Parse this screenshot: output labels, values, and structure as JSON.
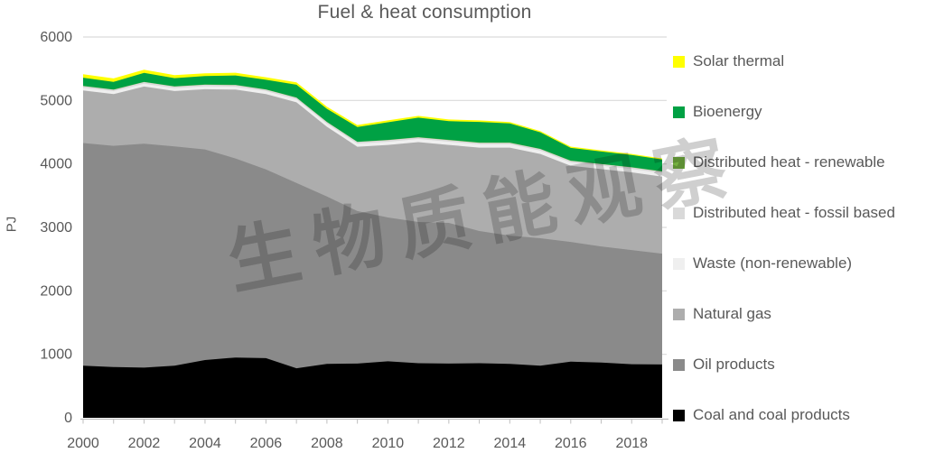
{
  "title": "Fuel & heat consumption",
  "watermark": {
    "text": "生物质能观察"
  },
  "y_axis_unit": "PJ",
  "legend": {
    "items": [
      {
        "label": "Solar thermal",
        "color": "#FFFF00"
      },
      {
        "label": "Bioenergy",
        "color": "#00A144"
      },
      {
        "label": "Distributed heat - renewable",
        "color": "#74B041"
      },
      {
        "label": "Distributed heat - fossil based",
        "color": "#D9D9D9"
      },
      {
        "label": "Waste (non-renewable)",
        "color": "#EFEFEF"
      },
      {
        "label": "Natural gas",
        "color": "#ADADAD"
      },
      {
        "label": "Oil products",
        "color": "#8A8A8A"
      },
      {
        "label": "Coal and coal products",
        "color": "#000000"
      }
    ]
  },
  "chart_data": {
    "type": "area",
    "stacked": true,
    "title": "Fuel & heat consumption",
    "xlabel": "",
    "ylabel": "PJ",
    "ylim": [
      0,
      6000
    ],
    "y_ticks": [
      0,
      1000,
      2000,
      3000,
      4000,
      5000,
      6000
    ],
    "x": [
      2000,
      2001,
      2002,
      2003,
      2004,
      2005,
      2006,
      2007,
      2008,
      2009,
      2010,
      2011,
      2012,
      2013,
      2014,
      2015,
      2016,
      2017,
      2018,
      2019
    ],
    "x_tick_labels": [
      "2000",
      "2002",
      "2004",
      "2006",
      "2008",
      "2010",
      "2012",
      "2014",
      "2016",
      "2018"
    ],
    "grid": "horizontal",
    "legend_position": "right",
    "series_bottom_to_top": [
      {
        "key": "coal",
        "name": "Coal and coal products",
        "color": "#000000",
        "values": [
          820,
          800,
          790,
          820,
          910,
          950,
          940,
          780,
          850,
          855,
          890,
          860,
          855,
          860,
          850,
          820,
          885,
          870,
          845,
          840
        ]
      },
      {
        "key": "oil",
        "name": "Oil products",
        "color": "#8A8A8A",
        "values": [
          3509,
          3486,
          3530,
          3457,
          3319,
          3136,
          2974,
          2920,
          2636,
          2402,
          2267,
          2226,
          2216,
          2083,
          2021,
          2009,
          1886,
          1830,
          1798,
          1746
        ]
      },
      {
        "key": "gas",
        "name": "Natural gas",
        "color": "#ADADAD",
        "values": [
          828,
          814,
          900,
          872,
          948,
          1085,
          1186,
          1271,
          1100,
          1014,
          1143,
          1257,
          1228,
          1314,
          1386,
          1328,
          1200,
          1219,
          1224,
          1214
        ]
      },
      {
        "key": "waste",
        "name": "Waste (non-renewable)",
        "color": "#EFEFEF",
        "values": [
          45,
          45,
          45,
          46,
          46,
          46,
          47,
          48,
          48,
          50,
          50,
          50,
          52,
          52,
          52,
          53,
          53,
          53,
          54,
          55
        ]
      },
      {
        "key": "dh_fossil",
        "name": "Distributed heat - fossil based",
        "color": "#D9D9D9",
        "values": [
          25,
          25,
          25,
          25,
          25,
          25,
          25,
          25,
          25,
          25,
          25,
          25,
          25,
          25,
          25,
          25,
          25,
          25,
          25,
          25
        ]
      },
      {
        "key": "dh_renewable",
        "name": "Distributed heat - renewable",
        "color": "#74B041",
        "values": [
          4,
          4,
          4,
          4,
          4,
          4,
          4,
          4,
          4,
          4,
          4,
          4,
          4,
          4,
          4,
          4,
          4,
          4,
          4,
          5
        ]
      },
      {
        "key": "bioenergy",
        "name": "Bioenergy",
        "color": "#00A144",
        "values": [
          128,
          120,
          140,
          128,
          132,
          148,
          150,
          200,
          205,
          232,
          277,
          307,
          294,
          324,
          300,
          260,
          200,
          195,
          190,
          185
        ]
      },
      {
        "key": "solar",
        "name": "Solar thermal",
        "color": "#FFFF00",
        "values": [
          55,
          53,
          50,
          48,
          45,
          43,
          40,
          38,
          35,
          32,
          30,
          28,
          26,
          24,
          22,
          20,
          19,
          18,
          17,
          16
        ]
      }
    ]
  }
}
